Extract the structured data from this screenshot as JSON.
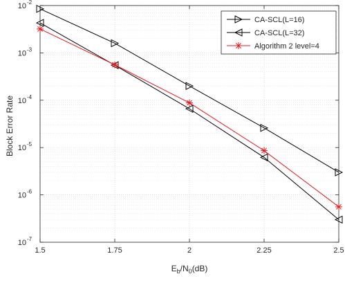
{
  "chart_data": {
    "type": "line",
    "x": [
      1.5,
      1.75,
      2,
      2.25,
      2.5
    ],
    "x_tick_labels": [
      "1.5",
      "1.75",
      "2",
      "2.25",
      "2.5"
    ],
    "xlim": [
      1.5,
      2.5
    ],
    "y_scale": "log",
    "ylim": [
      1e-07,
      0.01
    ],
    "y_tick_values": [
      1e-07,
      1e-06,
      1e-05,
      0.0001,
      0.001,
      0.01
    ],
    "y_tick_base": "10",
    "y_tick_exponents": [
      "-7",
      "-6",
      "-5",
      "-4",
      "-3",
      "-2"
    ],
    "ylabel": "Block Error Rate",
    "xlabel": {
      "E": "E",
      "b": "b",
      "slash": "/N",
      "zero": "0",
      "unit": "(dB)"
    },
    "grid": true,
    "legend_position": "top-right",
    "series": [
      {
        "name": "CA-SCL(L=16)",
        "color": "#000000",
        "marker": "triangle-right",
        "values": [
          0.0085,
          0.0016,
          0.0002,
          2.6e-05,
          3e-06
        ]
      },
      {
        "name": "CA-SCL(L=32)",
        "color": "#000000",
        "marker": "triangle-left",
        "values": [
          0.0043,
          0.00055,
          6.6e-05,
          6.2e-06,
          3e-07
        ]
      },
      {
        "name": "Algorithm 2 level=4",
        "color": "#e8171d",
        "marker": "asterisk",
        "values": [
          0.0032,
          0.00056,
          8.8e-05,
          8.6e-06,
          5.6e-07
        ]
      }
    ]
  }
}
